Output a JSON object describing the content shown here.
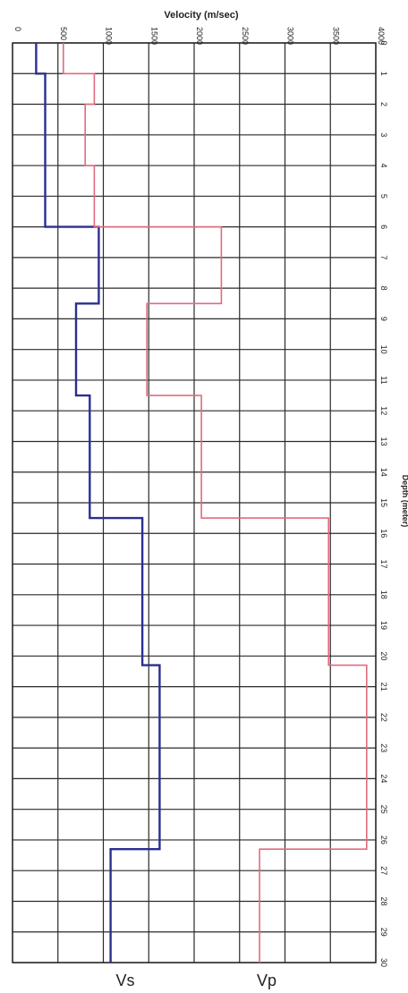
{
  "chart_data": {
    "type": "line",
    "title": "Velocity (m/sec)",
    "xlabel": "Velocity (m/sec)",
    "ylabel": "Depth (meter)",
    "xlim": [
      0,
      4000
    ],
    "ylim": [
      0,
      30
    ],
    "x_ticks": [
      "0",
      "500",
      "1000",
      "1500",
      "2000",
      "2500",
      "3000",
      "3500",
      "4000"
    ],
    "y_ticks": [
      "0",
      "1",
      "2",
      "3",
      "4",
      "5",
      "6",
      "7",
      "8",
      "9",
      "10",
      "11",
      "12",
      "13",
      "14",
      "15",
      "16",
      "17",
      "18",
      "19",
      "20",
      "21",
      "22",
      "23",
      "24",
      "25",
      "26",
      "27",
      "28",
      "29",
      "30"
    ],
    "grid": true,
    "series": [
      {
        "name": "Vs",
        "color": "#2a2f8f",
        "points": [
          [
            260,
            0
          ],
          [
            260,
            1
          ],
          [
            360,
            1
          ],
          [
            360,
            2.5
          ],
          [
            360,
            2.5
          ],
          [
            360,
            6
          ],
          [
            950,
            6
          ],
          [
            950,
            8.5
          ],
          [
            700,
            8.5
          ],
          [
            700,
            11.5
          ],
          [
            850,
            11.5
          ],
          [
            850,
            15.5
          ],
          [
            1430,
            15.5
          ],
          [
            1430,
            20.3
          ],
          [
            1620,
            20.3
          ],
          [
            1620,
            26.3
          ],
          [
            1080,
            26.3
          ],
          [
            1080,
            30
          ]
        ]
      },
      {
        "name": "Vp",
        "color": "#e06b7e",
        "points": [
          [
            560,
            0
          ],
          [
            560,
            1
          ],
          [
            900,
            1
          ],
          [
            900,
            2
          ],
          [
            800,
            2
          ],
          [
            800,
            4
          ],
          [
            900,
            4
          ],
          [
            900,
            6
          ],
          [
            2300,
            6
          ],
          [
            2300,
            8.5
          ],
          [
            1480,
            8.5
          ],
          [
            1480,
            11.5
          ],
          [
            2080,
            11.5
          ],
          [
            2080,
            15.5
          ],
          [
            3480,
            15.5
          ],
          [
            3480,
            20.3
          ],
          [
            3900,
            20.3
          ],
          [
            3900,
            26.3
          ],
          [
            2720,
            26.3
          ],
          [
            2720,
            30
          ]
        ]
      }
    ],
    "labels": {
      "vs": "Vs",
      "vp": "Vp"
    }
  }
}
